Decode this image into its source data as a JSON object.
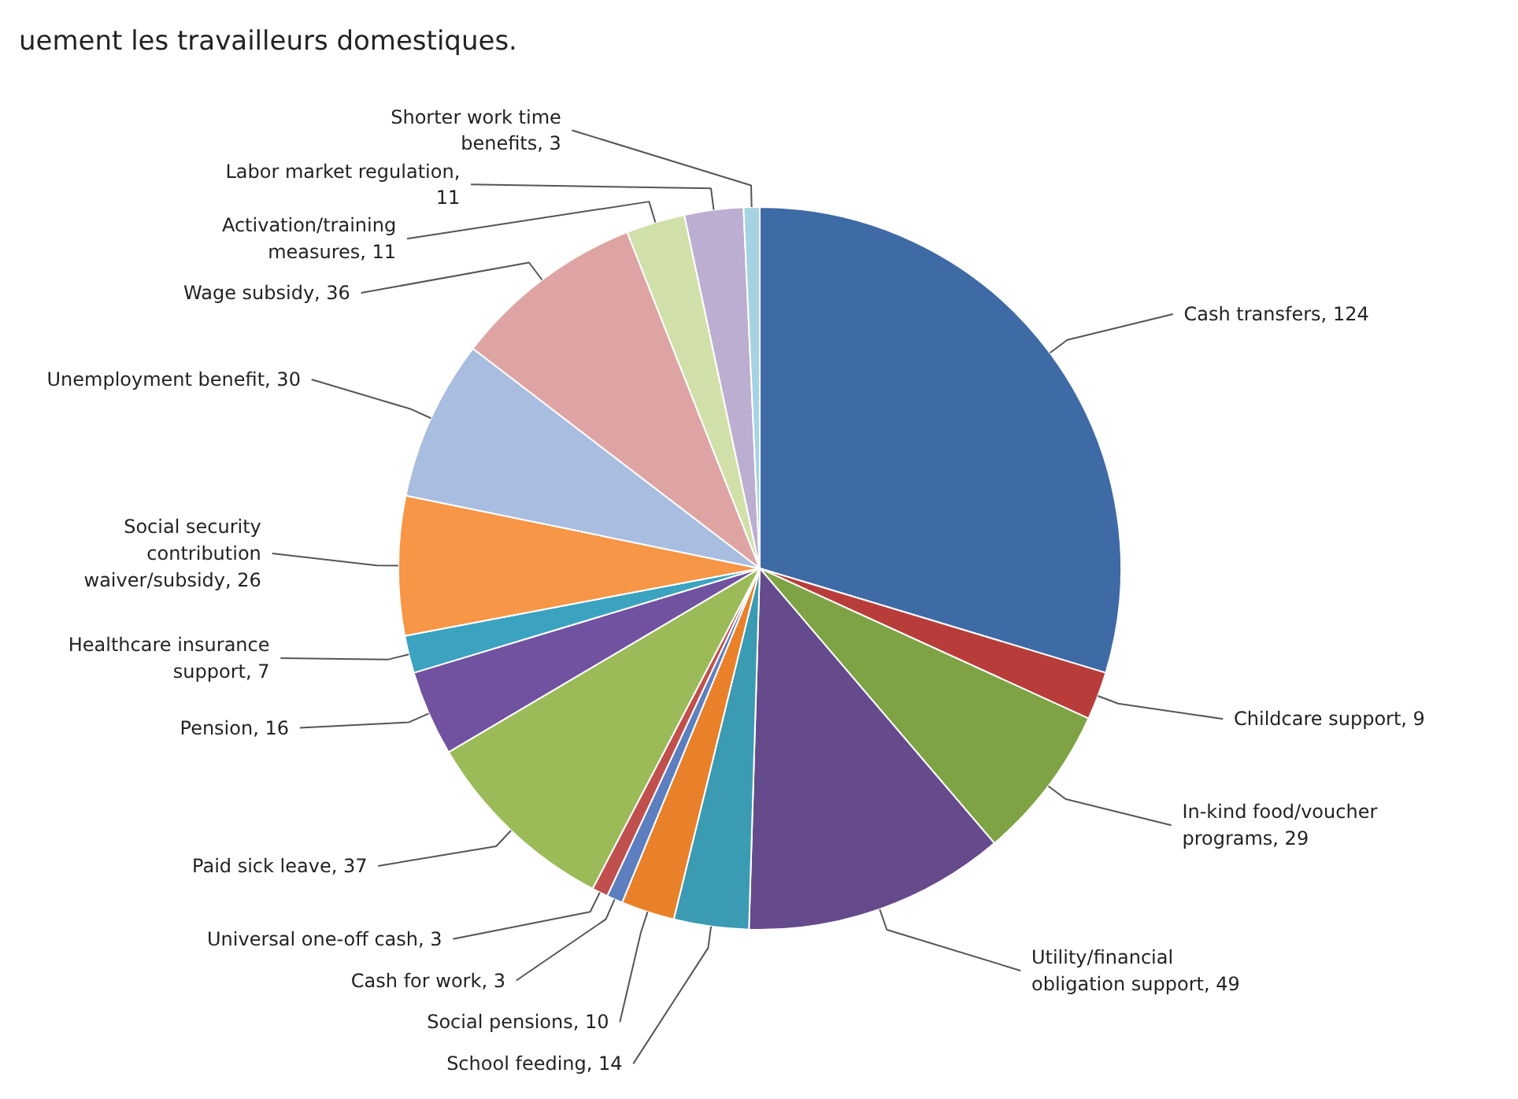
{
  "chart_data": {
    "type": "pie",
    "annotations": [
      "uement les travailleurs domestiques."
    ],
    "categories": [
      "Cash transfers, 124",
      "Childcare support, 9",
      "In-kind food/voucher programs, 29",
      "Utility/financial obligation support, 49",
      "School feeding, 14",
      "Social pensions, 10",
      "Cash for work, 3",
      "Universal one-off cash, 3",
      "Paid sick leave, 37",
      "Pension, 16",
      "Healthcare insurance support, 7",
      "Social security contribution waiver/subsidy, 26",
      "Unemployment benefit, 30",
      "Wage subsidy, 36",
      "Activation/training measures, 11",
      "Labor market regulation, 11",
      "Shorter work time benefits, 3"
    ],
    "values": [
      124,
      9,
      29,
      49,
      14,
      10,
      3,
      3,
      37,
      16,
      7,
      26,
      30,
      36,
      11,
      11,
      3
    ],
    "colors": [
      "#3e6aa6",
      "#b83d3a",
      "#7ea344",
      "#654a8c",
      "#3a9bb3",
      "#e9812a",
      "#5d7fbf",
      "#c0504d",
      "#9bbb59",
      "#7152a0",
      "#3ba3c0",
      "#f79646",
      "#a9bde0",
      "#dea4a3",
      "#d1e0a9",
      "#bcaed0",
      "#a5d3e3"
    ]
  }
}
